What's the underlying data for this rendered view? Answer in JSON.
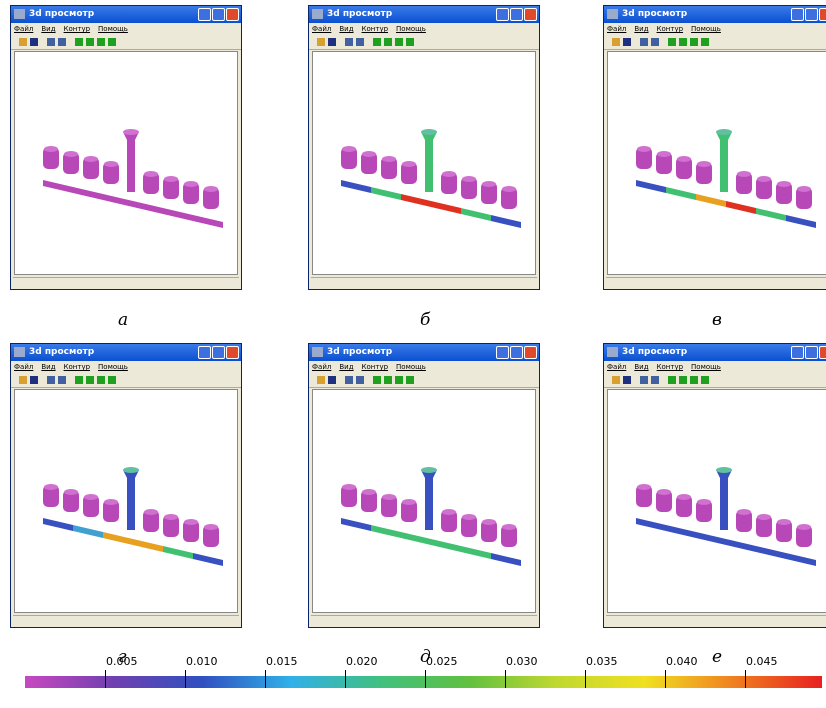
{
  "windows": [
    {
      "title": "3d просмотр",
      "menu": [
        "Файл",
        "Вид",
        "Контур",
        "Помощь"
      ],
      "caption": "а"
    },
    {
      "title": "3d просмотр",
      "menu": [
        "Файл",
        "Вид",
        "Контур",
        "Помощь"
      ],
      "caption": "б"
    },
    {
      "title": "3d просмотр",
      "menu": [
        "Файл",
        "Вид",
        "Контур",
        "Помощь"
      ],
      "caption": "в"
    },
    {
      "title": "3d просмотр",
      "menu": [
        "Файл",
        "Вид",
        "Контур",
        "Помощь"
      ],
      "caption": "г"
    },
    {
      "title": "3d просмотр",
      "menu": [
        "Файл",
        "Вид",
        "Контур",
        "Помощь"
      ],
      "caption": "д"
    },
    {
      "title": "3d просмотр",
      "menu": [
        "Файл",
        "Вид",
        "Контур",
        "Помощь"
      ],
      "caption": "е"
    }
  ],
  "colorbar": {
    "ticks": [
      "0.005",
      "0.010",
      "0.015",
      "0.020",
      "0.025",
      "0.030",
      "0.035",
      "0.040",
      "0.045"
    ]
  }
}
